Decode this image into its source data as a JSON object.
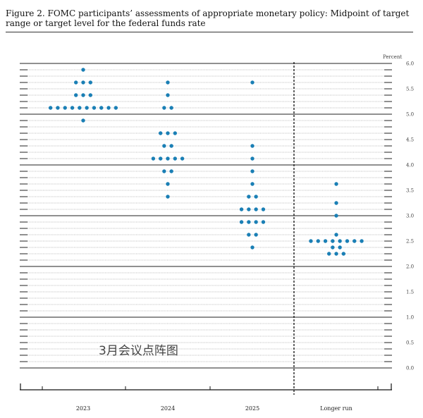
{
  "figure": {
    "title": "Figure 2.  FOMC participants’ assessments of appropriate monetary policy:  Midpoint of target range or target level for the federal funds rate"
  },
  "watermark": "3月会议点阵图",
  "chart_data": {
    "type": "scatter",
    "title": "",
    "ylabel": "Percent",
    "ylim": [
      0,
      6
    ],
    "ytick_step": 0.125,
    "yticks_labeled": [
      "0.0",
      "0.5",
      "1.0",
      "1.5",
      "2.0",
      "2.5",
      "3.0",
      "3.5",
      "4.0",
      "4.5",
      "5.0",
      "5.5",
      "6.0"
    ],
    "categories": [
      "2023",
      "2024",
      "2025",
      "Longer run"
    ],
    "separator_before": "Longer run",
    "dot_color": "#1a7fb5",
    "dots": [
      {
        "category": "2023",
        "y": 5.875,
        "count": 1
      },
      {
        "category": "2023",
        "y": 5.625,
        "count": 3
      },
      {
        "category": "2023",
        "y": 5.375,
        "count": 3
      },
      {
        "category": "2023",
        "y": 5.125,
        "count": 10
      },
      {
        "category": "2023",
        "y": 4.875,
        "count": 1
      },
      {
        "category": "2024",
        "y": 5.625,
        "count": 1
      },
      {
        "category": "2024",
        "y": 5.375,
        "count": 1
      },
      {
        "category": "2024",
        "y": 5.125,
        "count": 2
      },
      {
        "category": "2024",
        "y": 4.625,
        "count": 3
      },
      {
        "category": "2024",
        "y": 4.375,
        "count": 2
      },
      {
        "category": "2024",
        "y": 4.125,
        "count": 5
      },
      {
        "category": "2024",
        "y": 3.875,
        "count": 2
      },
      {
        "category": "2024",
        "y": 3.625,
        "count": 1
      },
      {
        "category": "2024",
        "y": 3.375,
        "count": 1
      },
      {
        "category": "2025",
        "y": 5.625,
        "count": 1
      },
      {
        "category": "2025",
        "y": 4.375,
        "count": 1
      },
      {
        "category": "2025",
        "y": 4.125,
        "count": 1
      },
      {
        "category": "2025",
        "y": 3.875,
        "count": 1
      },
      {
        "category": "2025",
        "y": 3.625,
        "count": 1
      },
      {
        "category": "2025",
        "y": 3.375,
        "count": 2
      },
      {
        "category": "2025",
        "y": 3.125,
        "count": 4
      },
      {
        "category": "2025",
        "y": 2.875,
        "count": 4
      },
      {
        "category": "2025",
        "y": 2.625,
        "count": 2
      },
      {
        "category": "2025",
        "y": 2.375,
        "count": 1
      },
      {
        "category": "Longer run",
        "y": 3.625,
        "count": 1
      },
      {
        "category": "Longer run",
        "y": 3.25,
        "count": 1
      },
      {
        "category": "Longer run",
        "y": 3.0,
        "count": 1
      },
      {
        "category": "Longer run",
        "y": 2.625,
        "count": 1
      },
      {
        "category": "Longer run",
        "y": 2.5,
        "count": 8
      },
      {
        "category": "Longer run",
        "y": 2.375,
        "count": 2
      },
      {
        "category": "Longer run",
        "y": 2.25,
        "count": 3
      }
    ]
  }
}
